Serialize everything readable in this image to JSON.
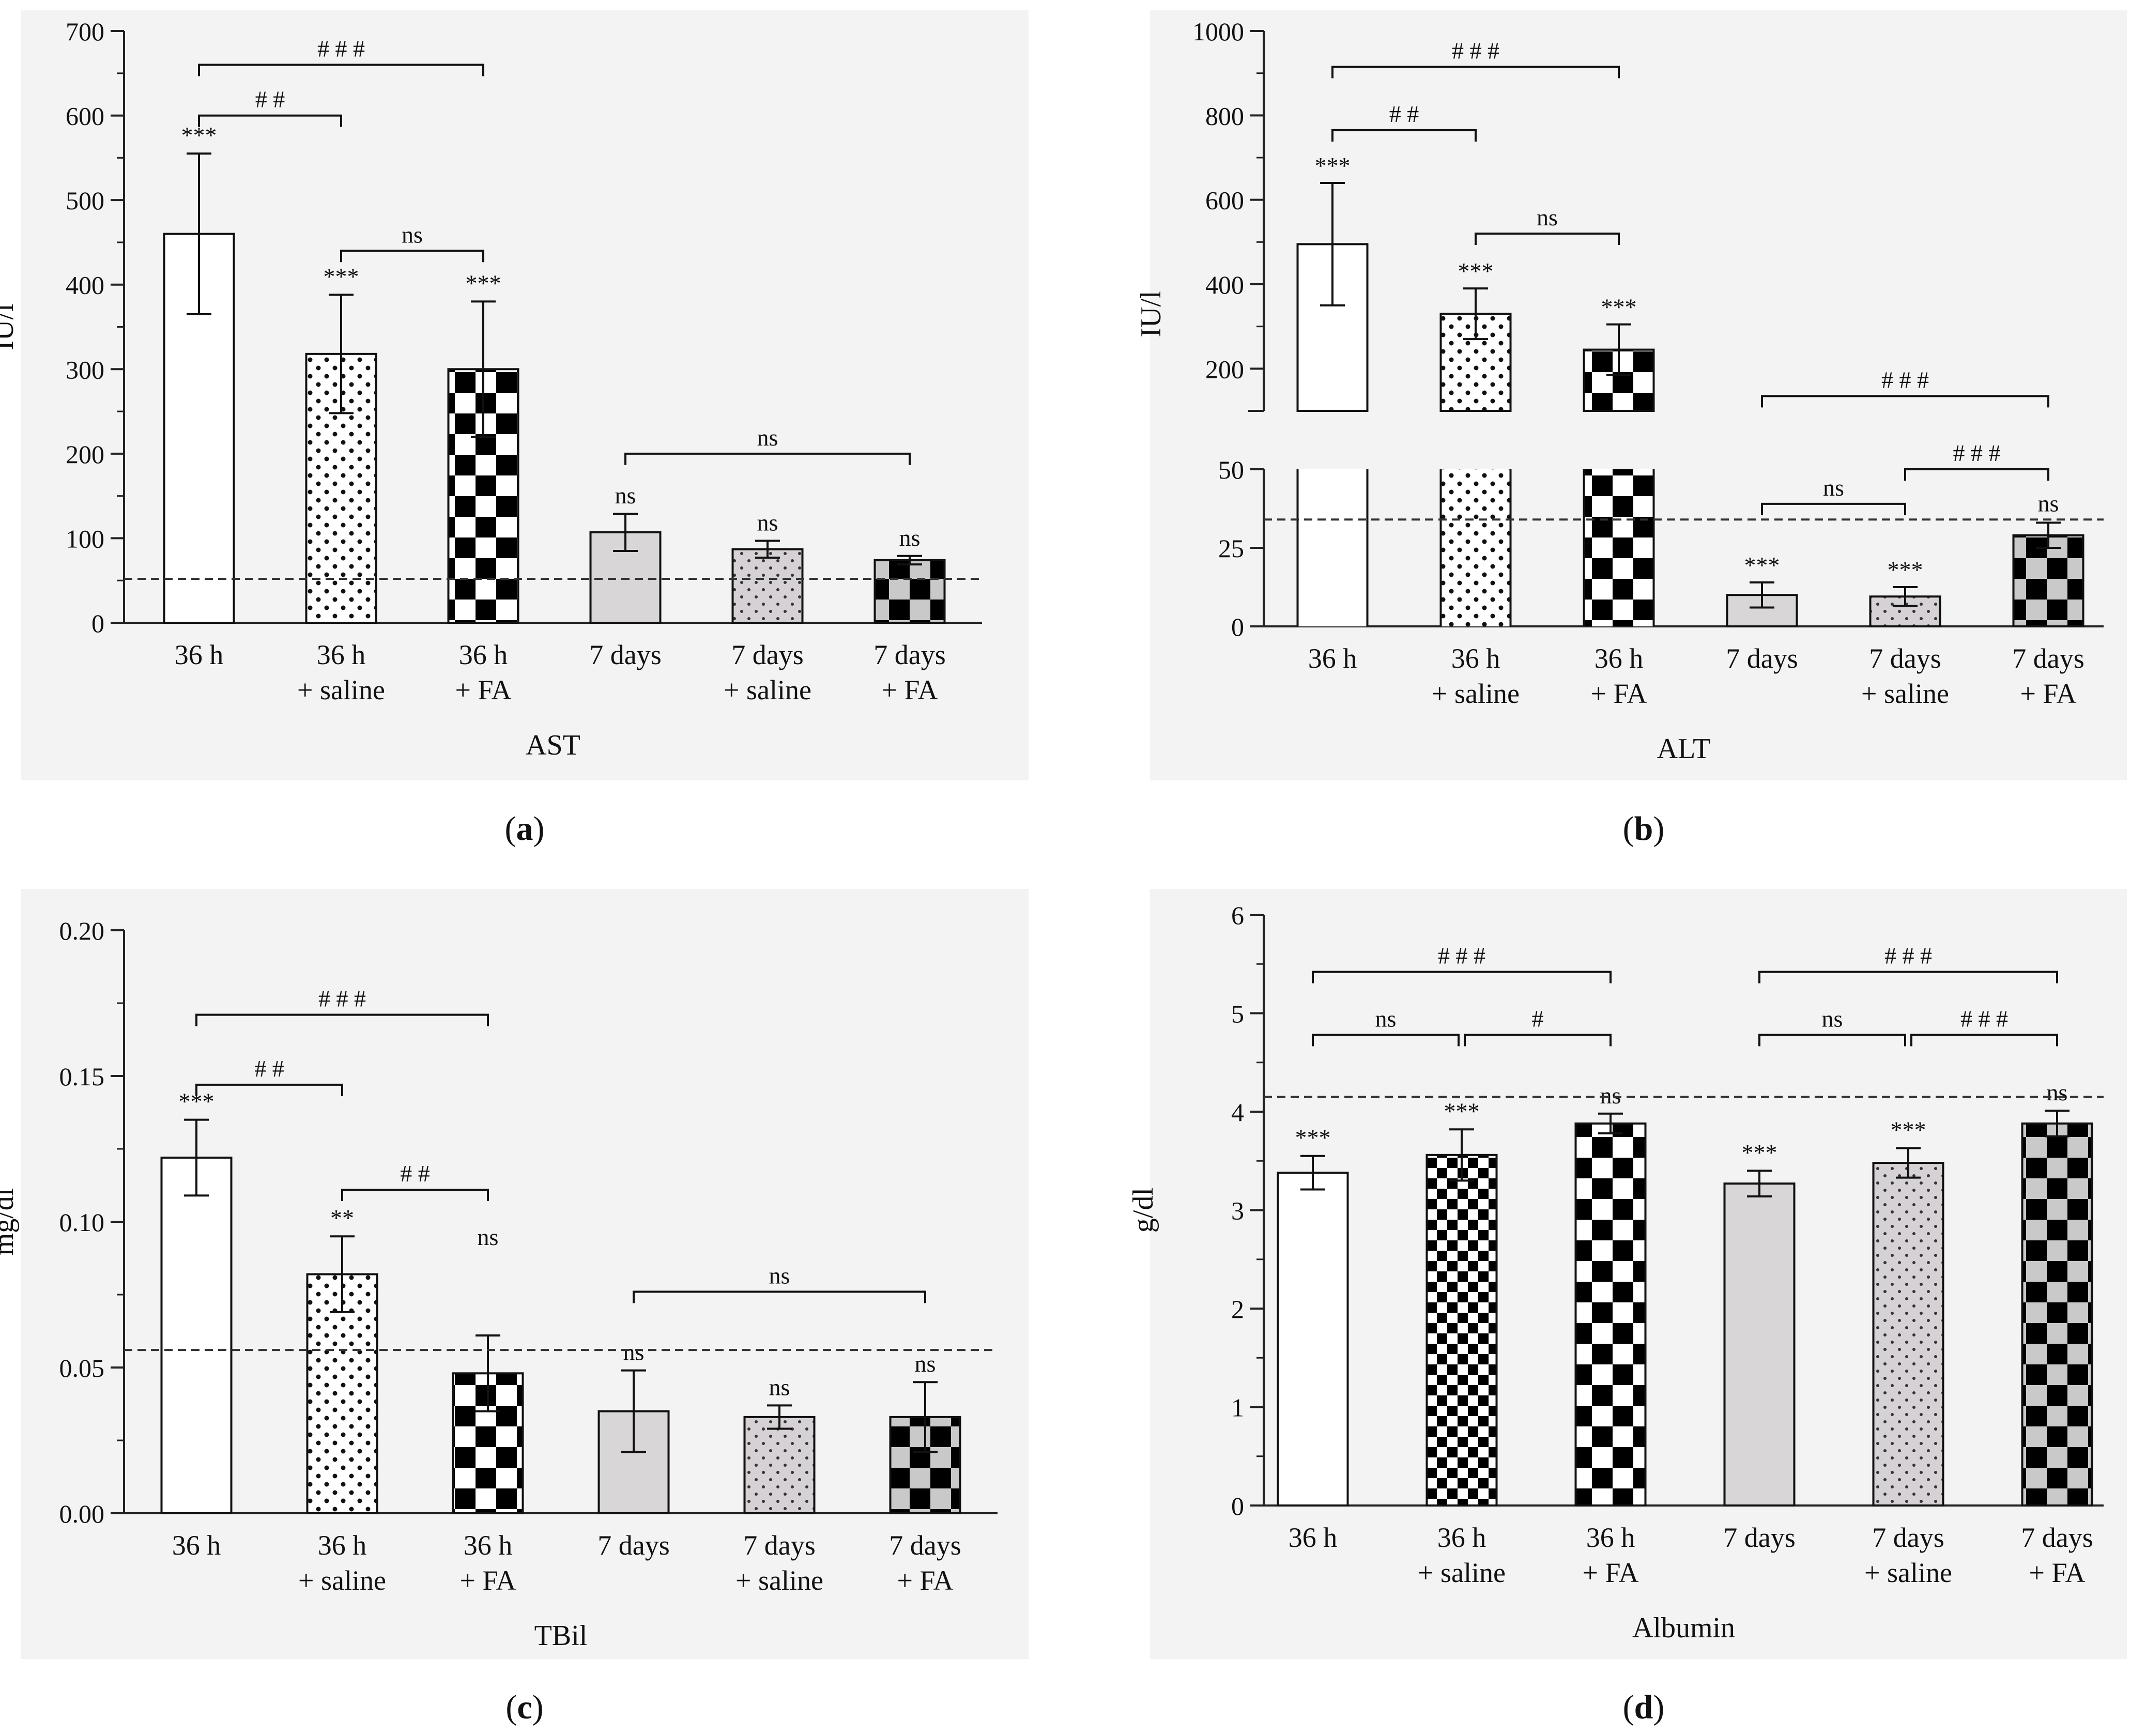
{
  "figure": {
    "background": "#ffffff",
    "panel_background": "#f3f3f3",
    "threshold_color": "#333333"
  },
  "categories": [
    [
      "36 h",
      ""
    ],
    [
      "36 h",
      "+ saline"
    ],
    [
      "36 h",
      "+ FA"
    ],
    [
      "7 days",
      ""
    ],
    [
      "7 days",
      "+ saline"
    ],
    [
      "7 days",
      "+ FA"
    ]
  ],
  "patterns": [
    "white",
    "dots-white",
    "checker-black",
    "plain-gray",
    "dots-gray",
    "checker-gray"
  ],
  "chart_data": [
    {
      "panel_label": "a",
      "type": "bar",
      "title": "AST",
      "xlabel": "AST",
      "ylabel": "IU/l",
      "ylim": [
        0,
        700
      ],
      "yticks": [
        0,
        100,
        200,
        300,
        400,
        500,
        600,
        700
      ],
      "ytick_labels": [
        "0",
        "100",
        "200",
        "300",
        "400",
        "500",
        "600",
        "700"
      ],
      "values": [
        460,
        318,
        300,
        107,
        87,
        74
      ],
      "err": [
        95,
        70,
        80,
        22,
        10,
        5
      ],
      "stars": [
        "***",
        "***",
        "***",
        "ns",
        "ns",
        "ns"
      ],
      "threshold": 52,
      "brackets": [
        {
          "from": 0,
          "to": 2,
          "y": 660,
          "label": "# # #"
        },
        {
          "from": 0,
          "to": 1,
          "y": 600,
          "label": "# #"
        },
        {
          "from": 1,
          "to": 2,
          "y": 440,
          "label": "ns"
        },
        {
          "from": 3,
          "to": 5,
          "y": 200,
          "label": "ns"
        }
      ]
    },
    {
      "panel_label": "b",
      "type": "bar",
      "title": "ALT",
      "xlabel": "ALT",
      "ylabel": "IU/l",
      "broken_axis": true,
      "upper_ylim": [
        100,
        1000
      ],
      "lower_ylim": [
        0,
        50
      ],
      "upper_yticks": [
        200,
        400,
        600,
        800,
        1000
      ],
      "upper_ytick_labels": [
        "200",
        "400",
        "600",
        "800",
        "1000"
      ],
      "lower_yticks": [
        0,
        25,
        50
      ],
      "lower_ytick_labels": [
        "0",
        "25",
        "50"
      ],
      "values": [
        495,
        330,
        245,
        10,
        9.5,
        29
      ],
      "err": [
        145,
        60,
        60,
        4,
        3,
        4
      ],
      "stars": [
        "***",
        "***",
        "***",
        "***",
        "***",
        "ns"
      ],
      "threshold": 34,
      "brackets": [
        {
          "from": 0,
          "to": 2,
          "y": 915,
          "label": "# # #"
        },
        {
          "from": 0,
          "to": 1,
          "y": 765,
          "label": "# #"
        },
        {
          "from": 1,
          "to": 2,
          "y": 520,
          "label": "ns"
        },
        {
          "from": 3,
          "to": 5,
          "y": 135,
          "label": "# # #"
        },
        {
          "from": 4,
          "to": 5,
          "y": 52,
          "label": "# # #"
        },
        {
          "from": 3,
          "to": 4,
          "y": 39,
          "label": "ns"
        }
      ]
    },
    {
      "panel_label": "c",
      "type": "bar",
      "title": "TBil",
      "xlabel": "TBil",
      "ylabel": "mg/dl",
      "ylim": [
        0,
        0.2
      ],
      "yticks": [
        0,
        0.05,
        0.1,
        0.15,
        0.2
      ],
      "ytick_labels": [
        "0.00",
        "0.05",
        "0.10",
        "0.15",
        "0.20"
      ],
      "values": [
        0.122,
        0.082,
        0.048,
        0.035,
        0.033,
        0.033
      ],
      "err": [
        0.013,
        0.013,
        0.013,
        0.014,
        0.004,
        0.012
      ],
      "stars": [
        "***",
        "**",
        "ns",
        "ns",
        "ns",
        "ns"
      ],
      "threshold": 0.056,
      "brackets": [
        {
          "from": 0,
          "to": 2,
          "y": 0.171,
          "label": "# # #"
        },
        {
          "from": 0,
          "to": 1,
          "y": 0.147,
          "label": "# #"
        },
        {
          "from": 1,
          "to": 2,
          "y": 0.111,
          "label": "# #"
        },
        {
          "from": 3,
          "to": 5,
          "y": 0.076,
          "label": "ns"
        }
      ]
    },
    {
      "panel_label": "d",
      "type": "bar",
      "title": "Albumin",
      "xlabel": "Albumin",
      "ylabel": "g/dl",
      "ylim": [
        0,
        6
      ],
      "yticks": [
        0,
        1,
        2,
        3,
        4,
        5,
        6
      ],
      "ytick_labels": [
        "0",
        "1",
        "2",
        "3",
        "4",
        "5",
        "6"
      ],
      "values": [
        3.38,
        3.56,
        3.88,
        3.27,
        3.48,
        3.88
      ],
      "err": [
        0.17,
        0.26,
        0.1,
        0.13,
        0.15,
        0.13
      ],
      "stars": [
        "***",
        "***",
        "ns",
        "***",
        "***",
        "ns"
      ],
      "threshold": 4.15,
      "brackets": [
        {
          "from": 0,
          "to": 2,
          "y": 5.42,
          "label": "# # #"
        },
        {
          "from": 0,
          "to": 1,
          "y": 4.78,
          "label": "ns"
        },
        {
          "from": 1,
          "to": 2,
          "y": 4.78,
          "label": "#"
        },
        {
          "from": 3,
          "to": 5,
          "y": 5.42,
          "label": "# # #"
        },
        {
          "from": 3,
          "to": 4,
          "y": 4.78,
          "label": "ns"
        },
        {
          "from": 4,
          "to": 5,
          "y": 4.78,
          "label": "# # #"
        }
      ]
    }
  ]
}
